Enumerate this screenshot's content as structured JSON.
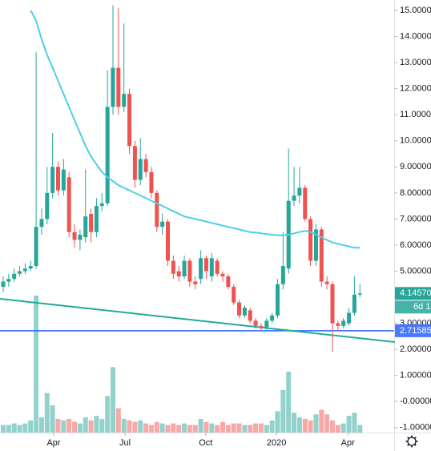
{
  "chart_data": {
    "type": "candlestick",
    "open": [
      4.4,
      4.6,
      4.7,
      4.9,
      5.0,
      5.1,
      5.2,
      6.7,
      7.0,
      8.0,
      9.0,
      8.1,
      8.6,
      6.5,
      6.2,
      6.3,
      7.2,
      6.5,
      7.5,
      7.6,
      11.3,
      12.8,
      11.3,
      11.8,
      9.8,
      8.5,
      9.3,
      8.8,
      8.0,
      6.7,
      6.9,
      5.4,
      5.0,
      4.8,
      5.4,
      4.6,
      4.7,
      5.5,
      4.8,
      5.4,
      4.9,
      4.8,
      4.4,
      3.8,
      3.3,
      3.5,
      3.1,
      2.9,
      2.85,
      3.1,
      3.3,
      4.5,
      5.1,
      7.7,
      7.9,
      8.2,
      7.0,
      5.4,
      6.6,
      4.6,
      4.5,
      3.0,
      2.9,
      3.0,
      3.4,
      4.1
    ],
    "high": [
      4.8,
      4.9,
      5.1,
      5.2,
      5.3,
      5.4,
      13.4,
      7.4,
      9.0,
      10.3,
      9.2,
      9.3,
      8.8,
      6.8,
      6.6,
      8.9,
      7.4,
      7.8,
      8.0,
      12.7,
      15.2,
      15.1,
      14.5,
      12.0,
      10.0,
      10.1,
      9.5,
      9.0,
      8.1,
      7.2,
      7.0,
      5.6,
      5.2,
      5.6,
      5.5,
      4.8,
      5.8,
      5.6,
      5.7,
      5.5,
      5.0,
      4.9,
      4.5,
      3.9,
      3.7,
      3.6,
      3.2,
      3.0,
      3.2,
      3.4,
      4.7,
      6.5,
      9.7,
      9.0,
      9.0,
      8.3,
      7.1,
      6.8,
      6.7,
      4.8,
      4.6,
      3.1,
      3.2,
      3.6,
      4.8,
      4.5
    ],
    "low": [
      4.2,
      4.4,
      4.6,
      4.8,
      4.9,
      5.0,
      5.1,
      6.4,
      6.8,
      7.8,
      7.9,
      7.9,
      6.3,
      5.9,
      5.8,
      6.1,
      6.1,
      6.3,
      7.3,
      7.5,
      11.0,
      11.0,
      11.1,
      9.5,
      8.2,
      8.3,
      8.6,
      7.8,
      6.5,
      6.4,
      5.2,
      4.7,
      4.6,
      4.7,
      4.4,
      4.3,
      4.5,
      4.7,
      4.6,
      4.8,
      4.6,
      4.3,
      3.7,
      3.2,
      3.2,
      3.0,
      2.8,
      2.7,
      2.75,
      3.0,
      3.2,
      4.3,
      4.9,
      7.5,
      7.6,
      6.9,
      5.2,
      5.2,
      4.4,
      4.3,
      1.9,
      2.7,
      2.8,
      2.9,
      3.3,
      4.0
    ],
    "close": [
      4.6,
      4.7,
      4.9,
      5.0,
      5.1,
      5.2,
      6.7,
      7.0,
      8.0,
      9.0,
      8.1,
      8.9,
      6.5,
      6.2,
      6.4,
      7.1,
      6.5,
      7.5,
      7.6,
      11.3,
      12.8,
      11.3,
      11.8,
      9.8,
      8.5,
      9.3,
      8.8,
      8.0,
      6.7,
      6.9,
      5.4,
      4.9,
      4.8,
      5.4,
      4.6,
      4.5,
      5.5,
      5.0,
      5.5,
      4.9,
      4.8,
      4.4,
      3.8,
      3.3,
      3.6,
      3.1,
      2.9,
      2.85,
      3.1,
      3.3,
      4.5,
      5.2,
      7.7,
      7.9,
      8.2,
      7.0,
      5.4,
      6.6,
      4.6,
      4.5,
      3.0,
      2.9,
      3.1,
      3.4,
      4.1,
      4.1457
    ],
    "volume": [
      0.5,
      0.5,
      0.6,
      0.5,
      0.6,
      0.8,
      9.0,
      1.0,
      2.6,
      1.8,
      0.9,
      0.8,
      0.9,
      0.7,
      0.6,
      1.0,
      0.8,
      1.1,
      0.9,
      2.4,
      4.3,
      1.6,
      0.9,
      0.8,
      0.7,
      0.8,
      0.6,
      0.5,
      0.7,
      0.6,
      0.5,
      0.6,
      0.5,
      0.6,
      0.5,
      0.5,
      0.9,
      0.7,
      0.6,
      0.5,
      0.7,
      0.5,
      0.6,
      0.6,
      0.5,
      0.5,
      0.6,
      0.6,
      0.5,
      0.8,
      1.4,
      2.8,
      4.0,
      1.3,
      1.0,
      0.9,
      0.8,
      1.2,
      1.5,
      1.2,
      0.8,
      0.5,
      0.6,
      1.1,
      1.3,
      0.5
    ],
    "moving_average": {
      "color": "#4dd0e1",
      "values": [
        null,
        null,
        null,
        null,
        null,
        15.0,
        14.6,
        13.9,
        13.3,
        12.8,
        12.3,
        11.8,
        11.3,
        10.8,
        10.3,
        9.8,
        9.4,
        9.1,
        8.8,
        8.6,
        8.45,
        8.3,
        8.2,
        8.1,
        8.0,
        7.9,
        7.8,
        7.7,
        7.6,
        7.5,
        7.4,
        7.3,
        7.2,
        7.1,
        7.05,
        7.0,
        6.95,
        6.9,
        6.85,
        6.8,
        6.75,
        6.7,
        6.65,
        6.6,
        6.55,
        6.5,
        6.48,
        6.45,
        6.42,
        6.4,
        6.38,
        6.38,
        6.4,
        6.45,
        6.5,
        6.55,
        6.5,
        6.4,
        6.3,
        6.2,
        6.1,
        6.05,
        6.0,
        5.95,
        5.9,
        5.9
      ]
    },
    "up_color": "#26a69a",
    "down_color": "#ef5350",
    "trendline": {
      "color": "#22ab94",
      "values": [
        3.94,
        2.13
      ]
    },
    "horizontal_line": {
      "color": "#2962ff",
      "value": 2.71585,
      "label": "2.71585"
    },
    "last_price": {
      "value": 4.1457,
      "label": "4.14570",
      "countdown": "6d 1"
    },
    "ylim": [
      -1.19,
      15.4
    ],
    "yticks": [
      {
        "value": 15,
        "label": "15.00000"
      },
      {
        "value": 14,
        "label": "14.00000"
      },
      {
        "value": 13,
        "label": "13.00000"
      },
      {
        "value": 12,
        "label": "12.00000"
      },
      {
        "value": 11,
        "label": "11.00000"
      },
      {
        "value": 10,
        "label": "10.00000"
      },
      {
        "value": 9,
        "label": "9.00000"
      },
      {
        "value": 8,
        "label": "8.00000"
      },
      {
        "value": 7,
        "label": "7.00000"
      },
      {
        "value": 6,
        "label": "6.00000"
      },
      {
        "value": 5,
        "label": "5.00000"
      },
      {
        "value": 4,
        "label": "4.00000"
      },
      {
        "value": 3,
        "label": "3.00000"
      },
      {
        "value": 2,
        "label": "2.00000"
      },
      {
        "value": 1,
        "label": "1.00000"
      },
      {
        "value": 0,
        "label": "-0.00000"
      },
      {
        "value": -1,
        "label": "-1.00000"
      }
    ],
    "xticks": [
      {
        "value": 9.2,
        "label": "Apr"
      },
      {
        "value": 22.2,
        "label": "Jul"
      },
      {
        "value": 36.9,
        "label": "Oct"
      },
      {
        "value": 49.8,
        "label": "2020"
      },
      {
        "value": 62.8,
        "label": "Apr"
      }
    ]
  }
}
